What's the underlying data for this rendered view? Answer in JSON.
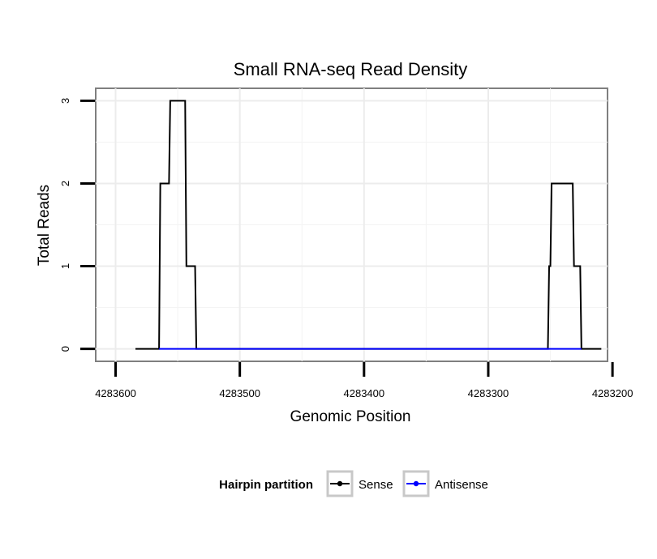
{
  "chart_data": {
    "type": "line",
    "title": "Small RNA-seq Read Density",
    "xlabel": "Genomic Position",
    "ylabel": "Total Reads",
    "xlim": [
      4283616,
      4283204
    ],
    "ylim": [
      -0.15,
      3.15
    ],
    "x_reversed": true,
    "grid": true,
    "x_ticks": [
      4283600,
      4283500,
      4283400,
      4283300,
      4283200
    ],
    "x_tick_labels": [
      "4283600",
      "4283500",
      "4283400",
      "4283300",
      "4283200"
    ],
    "y_ticks": [
      0,
      1,
      2,
      3
    ],
    "y_tick_labels": [
      "0",
      "1",
      "2",
      "3"
    ],
    "legend": {
      "title": "Hairpin partition",
      "position": "bottom",
      "entries": [
        {
          "label": "Sense",
          "color": "#000000"
        },
        {
          "label": "Antisense",
          "color": "#0000ff"
        }
      ]
    },
    "series": [
      {
        "name": "Sense",
        "color": "#000000",
        "x": [
          4283584,
          4283565,
          4283564,
          4283557,
          4283556,
          4283544,
          4283543,
          4283536,
          4283535,
          4283532,
          4283531,
          4283252,
          4283251,
          4283250,
          4283249,
          4283232,
          4283231,
          4283226,
          4283225,
          4283209
        ],
        "y": [
          0,
          0,
          2,
          2,
          3,
          3,
          1,
          1,
          0,
          0,
          0,
          0,
          1,
          1,
          2,
          2,
          1,
          1,
          0,
          0
        ]
      },
      {
        "name": "Antisense",
        "color": "#0000ff",
        "x": [
          4283565,
          4283535,
          4283252,
          4283225
        ],
        "y": [
          0,
          0,
          0,
          0
        ]
      }
    ]
  }
}
